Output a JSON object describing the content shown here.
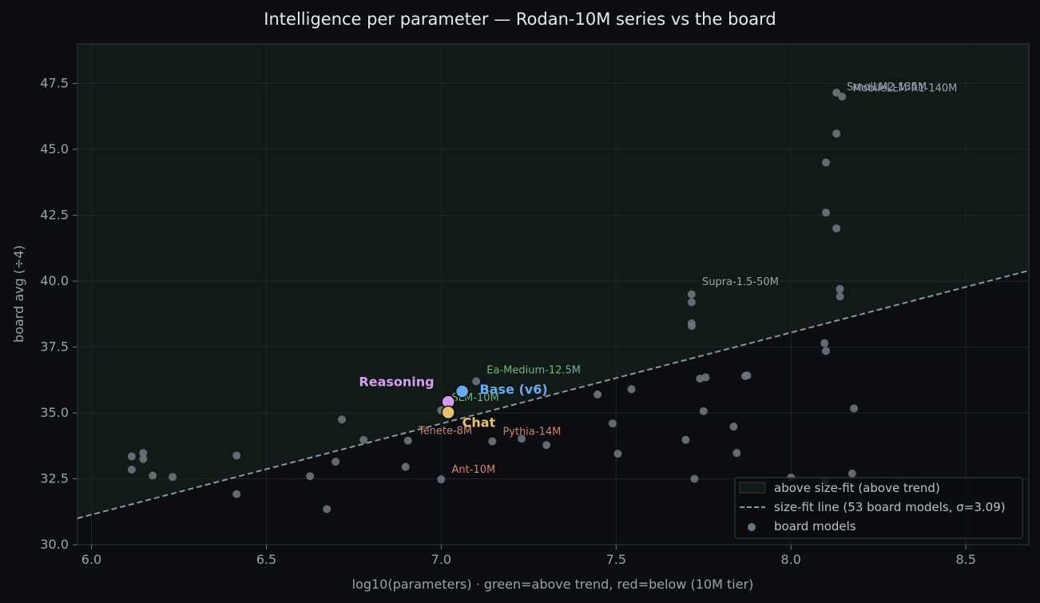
{
  "chart_data": {
    "type": "scatter",
    "title": "Intelligence per parameter — Rodan-10M series vs the board",
    "xlabel": "log10(parameters)  ·  green=above trend, red=below (10M tier)",
    "ylabel": "board avg (÷4)",
    "xlim": [
      5.96,
      8.68
    ],
    "ylim": [
      30.0,
      49.0
    ],
    "x_ticks": [
      "6.0",
      "6.5",
      "7.0",
      "7.5",
      "8.0",
      "8.5"
    ],
    "y_ticks": [
      "30.0",
      "32.5",
      "35.0",
      "37.5",
      "40.0",
      "42.5",
      "45.0",
      "47.5"
    ],
    "grid": true,
    "legend_position": "lower-right",
    "legend": [
      {
        "label": "above size-fit (above trend)",
        "kind": "patch"
      },
      {
        "label": "size-fit line (53 board models, σ=3.09)",
        "kind": "dashed-line"
      },
      {
        "label": "board models",
        "kind": "marker"
      }
    ],
    "trend_line": {
      "x": [
        5.96,
        8.68
      ],
      "y": [
        31.0,
        40.4
      ]
    },
    "colors": {
      "background": "#0b0d11",
      "above_region": "#111a16",
      "board_point": "#6b7580",
      "trend_line": "#8a97a6",
      "label_green": "#6fb784",
      "label_red": "#d08570",
      "label_neutral": "#9aa3ad",
      "base": "#6aaaf2",
      "reasoning": "#d89cf5",
      "chat": "#e9c06e"
    },
    "board_models": [
      {
        "x": 6.115,
        "y": 33.35
      },
      {
        "x": 6.148,
        "y": 33.48
      },
      {
        "x": 6.148,
        "y": 33.25
      },
      {
        "x": 6.115,
        "y": 32.85
      },
      {
        "x": 6.175,
        "y": 32.62
      },
      {
        "x": 6.232,
        "y": 32.57
      },
      {
        "x": 6.415,
        "y": 33.38
      },
      {
        "x": 6.415,
        "y": 31.92
      },
      {
        "x": 6.625,
        "y": 32.6
      },
      {
        "x": 6.673,
        "y": 31.35
      },
      {
        "x": 6.698,
        "y": 33.15
      },
      {
        "x": 6.716,
        "y": 34.75
      },
      {
        "x": 6.778,
        "y": 33.98
      },
      {
        "x": 6.898,
        "y": 32.95
      },
      {
        "x": 6.905,
        "y": 33.95
      },
      {
        "x": 7.0,
        "y": 32.48
      },
      {
        "x": 7.0,
        "y": 35.1
      },
      {
        "x": 7.1,
        "y": 36.2
      },
      {
        "x": 7.146,
        "y": 33.92
      },
      {
        "x": 7.23,
        "y": 34.02
      },
      {
        "x": 7.301,
        "y": 33.78
      },
      {
        "x": 7.447,
        "y": 35.7
      },
      {
        "x": 7.49,
        "y": 34.6
      },
      {
        "x": 7.505,
        "y": 33.45
      },
      {
        "x": 7.544,
        "y": 35.9
      },
      {
        "x": 7.699,
        "y": 33.98
      },
      {
        "x": 7.716,
        "y": 39.5
      },
      {
        "x": 7.716,
        "y": 39.2
      },
      {
        "x": 7.716,
        "y": 38.4
      },
      {
        "x": 7.716,
        "y": 38.3
      },
      {
        "x": 7.724,
        "y": 32.5
      },
      {
        "x": 7.74,
        "y": 36.3
      },
      {
        "x": 7.756,
        "y": 36.35
      },
      {
        "x": 7.75,
        "y": 35.07
      },
      {
        "x": 7.836,
        "y": 34.48
      },
      {
        "x": 7.845,
        "y": 33.48
      },
      {
        "x": 7.869,
        "y": 36.4
      },
      {
        "x": 7.875,
        "y": 36.42
      },
      {
        "x": 8.0,
        "y": 32.55
      },
      {
        "x": 8.096,
        "y": 32.42
      },
      {
        "x": 8.096,
        "y": 37.65
      },
      {
        "x": 8.1,
        "y": 37.35
      },
      {
        "x": 8.1,
        "y": 42.6
      },
      {
        "x": 8.1,
        "y": 44.5
      },
      {
        "x": 8.13,
        "y": 47.15
      },
      {
        "x": 8.13,
        "y": 45.6
      },
      {
        "x": 8.13,
        "y": 42.0
      },
      {
        "x": 8.14,
        "y": 39.7
      },
      {
        "x": 8.14,
        "y": 39.42
      },
      {
        "x": 8.146,
        "y": 47.0
      },
      {
        "x": 8.175,
        "y": 32.7
      },
      {
        "x": 8.18,
        "y": 35.17
      }
    ],
    "point_labels": [
      {
        "text": "SmolLM2-135M",
        "x": 8.13,
        "y": 47.15,
        "color": "neutral",
        "dx": 0.03,
        "dy": 0.1
      },
      {
        "text": "MobileLLM-R1-140M",
        "x": 8.146,
        "y": 47.0,
        "color": "neutral",
        "dx": 0.03,
        "dy": 0.2
      },
      {
        "text": "Supra-1.5-50M",
        "x": 7.716,
        "y": 39.5,
        "color": "neutral",
        "dx": 0.03,
        "dy": 0.35
      },
      {
        "text": "Ea-Medium-12.5M",
        "x": 7.1,
        "y": 36.2,
        "color": "green",
        "dx": 0.03,
        "dy": 0.3
      },
      {
        "text": "SLM-10M",
        "x": 7.0,
        "y": 35.1,
        "color": "green",
        "dx": 0.03,
        "dy": 0.35
      },
      {
        "text": "Tenete-8M",
        "x": 6.905,
        "y": 33.95,
        "color": "red",
        "dx": 0.03,
        "dy": 0.25
      },
      {
        "text": "Pythia-14M",
        "x": 7.146,
        "y": 33.92,
        "color": "red",
        "dx": 0.03,
        "dy": 0.25
      },
      {
        "text": "Ant-10M",
        "x": 7.0,
        "y": 32.48,
        "color": "red",
        "dx": 0.03,
        "dy": 0.25
      }
    ],
    "highlighted_models": [
      {
        "name": "Base (v6)",
        "x": 7.06,
        "y": 35.82,
        "color": "base",
        "label_side": "right",
        "dx": 0.05,
        "dy": -0.1
      },
      {
        "name": "Reasoning",
        "x": 7.02,
        "y": 35.42,
        "color": "reasoning",
        "label_side": "left",
        "dx": -0.04,
        "dy": 0.6
      },
      {
        "name": "Chat",
        "x": 7.02,
        "y": 35.02,
        "color": "chat",
        "label_side": "right",
        "dx": 0.04,
        "dy": -0.55
      }
    ]
  }
}
